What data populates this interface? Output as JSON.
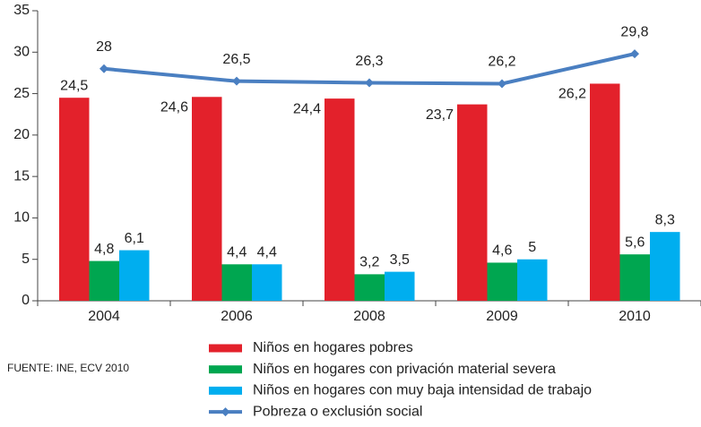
{
  "chart_data": {
    "type": "bar",
    "categories": [
      "2004",
      "2006",
      "2008",
      "2009",
      "2010"
    ],
    "series": [
      {
        "name": "Niños en hogares pobres",
        "color": "#e3212b",
        "values": [
          24.5,
          24.6,
          24.4,
          23.7,
          26.2
        ],
        "value_labels": [
          "24,5",
          "24,6",
          "24,4",
          "23,7",
          "26,2"
        ]
      },
      {
        "name": "Niños en hogares con privación material severa",
        "color": "#00a650",
        "values": [
          4.8,
          4.4,
          3.2,
          4.6,
          5.6
        ],
        "value_labels": [
          "4,8",
          "4,4",
          "3,2",
          "4,6",
          "5,6"
        ]
      },
      {
        "name": "Niños en hogares con muy baja intensidad de trabajo",
        "color": "#00aeef",
        "values": [
          6.1,
          4.4,
          3.5,
          5,
          8.3
        ],
        "value_labels": [
          "6,1",
          "4,4",
          "3,5",
          "5",
          "8,3"
        ]
      },
      {
        "name": "Pobreza o exclusión social",
        "color": "#4a7fc1",
        "type": "line",
        "values": [
          28,
          26.5,
          26.3,
          26.2,
          29.8
        ],
        "value_labels": [
          "28",
          "26,5",
          "26,3",
          "26,2",
          "29,8"
        ]
      }
    ],
    "ylim": [
      0,
      35
    ],
    "yticks": [
      0,
      5,
      10,
      15,
      20,
      25,
      30,
      35
    ],
    "source": "FUENTE: INE, ECV 2010"
  }
}
